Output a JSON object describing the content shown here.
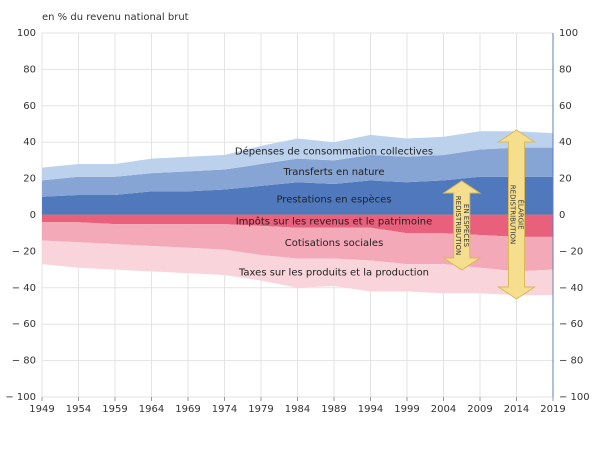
{
  "chart_data": {
    "type": "stacked_area",
    "y_label": "en % du revenu national brut",
    "x": [
      1949,
      1954,
      1959,
      1964,
      1969,
      1974,
      1979,
      1984,
      1989,
      1994,
      1999,
      2004,
      2009,
      2014,
      2019
    ],
    "xlim": [
      1949,
      2019
    ],
    "xticks": [
      1949,
      1954,
      1959,
      1964,
      1969,
      1974,
      1979,
      1984,
      1989,
      1994,
      1999,
      2004,
      2009,
      2014,
      2019
    ],
    "ylim": [
      -100,
      100
    ],
    "yticks": [
      {
        "value": -100,
        "label": "− 100"
      },
      {
        "value": -80,
        "label": "− 80"
      },
      {
        "value": -60,
        "label": "− 60"
      },
      {
        "value": -40,
        "label": "− 40"
      },
      {
        "value": -20,
        "label": "− 20"
      },
      0,
      20,
      40,
      60,
      80,
      100
    ],
    "grid": true,
    "series": [
      {
        "name": "Prestations en espèces",
        "color": "#4f78bd",
        "values": [
          10,
          11,
          11,
          13,
          13,
          14,
          16,
          18,
          17,
          19,
          18,
          19,
          21,
          21,
          21
        ]
      },
      {
        "name": "Transferts en nature",
        "color": "#86a5d4",
        "values": [
          9,
          10,
          10,
          10,
          11,
          11,
          12,
          13,
          13,
          14,
          14,
          14,
          15,
          16,
          16
        ]
      },
      {
        "name": "Dépenses de consommation collectives",
        "color": "#bcd2ec",
        "values": [
          7,
          7,
          7,
          8,
          8,
          8,
          10,
          11,
          10,
          11,
          10,
          10,
          10,
          9,
          8
        ]
      },
      {
        "name": "Impôts sur les revenus et le patrimoine",
        "color": "#e8607c",
        "values": [
          -4,
          -4,
          -5,
          -5,
          -5,
          -5,
          -6,
          -7,
          -7,
          -7,
          -10,
          -10,
          -11,
          -12,
          -12
        ]
      },
      {
        "name": "Cotisations sociales",
        "color": "#f3a9b7",
        "values": [
          -10,
          -11,
          -11,
          -12,
          -13,
          -14,
          -16,
          -17,
          -17,
          -18,
          -17,
          -17,
          -18,
          -19,
          -18
        ]
      },
      {
        "name": "Taxes sur les produits et la production",
        "color": "#f9d4db",
        "values": [
          -13,
          -14,
          -14,
          -14,
          -14,
          -14,
          -14,
          -16,
          -15,
          -17,
          -15,
          -16,
          -14,
          -13,
          -14
        ]
      }
    ],
    "annotations": [
      {
        "lines": [
          "REDISTRIBUTION",
          "EN ESPÈCES"
        ]
      },
      {
        "lines": [
          "REDISTRIBUTION",
          "ÉLARGIE"
        ]
      }
    ]
  }
}
